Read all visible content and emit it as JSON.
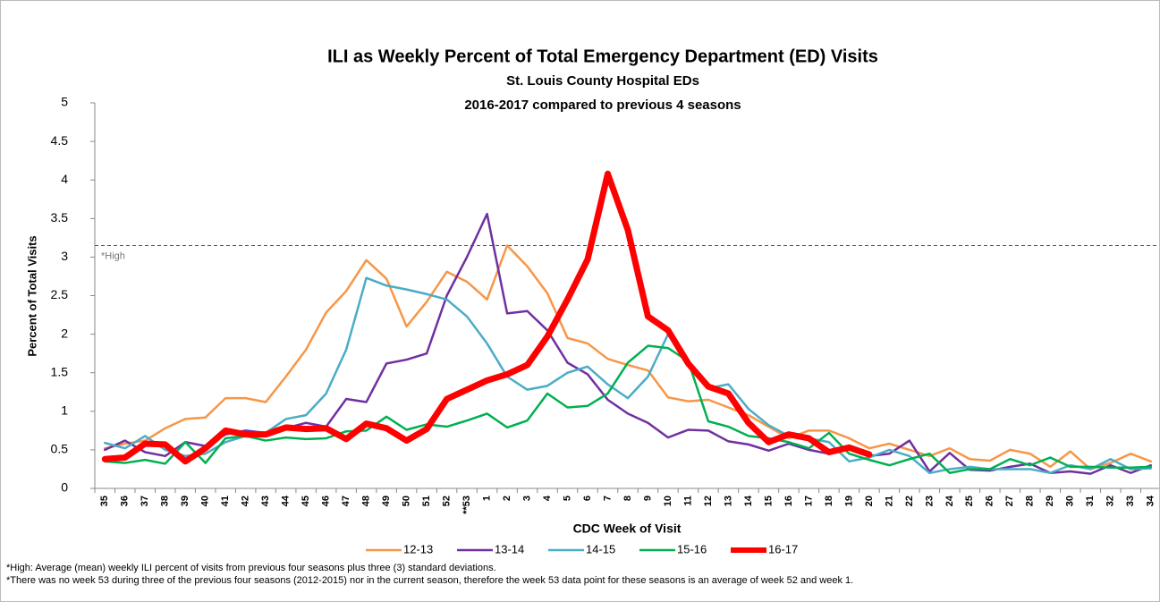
{
  "chart_data": {
    "type": "line",
    "title": "ILI as Weekly Percent of Total Emergency Department (ED) Visits",
    "subtitle": "St. Louis County Hospital EDs",
    "subtitle2": "2016-2017 compared to previous 4 seasons",
    "x_label": "CDC Week of Visit",
    "y_label": "Percent of Total Visits",
    "categories": [
      "35",
      "36",
      "37",
      "38",
      "39",
      "40",
      "41",
      "42",
      "43",
      "44",
      "45",
      "46",
      "47",
      "48",
      "49",
      "50",
      "51",
      "52",
      "**53",
      "1",
      "2",
      "3",
      "4",
      "5",
      "6",
      "7",
      "8",
      "9",
      "10",
      "11",
      "12",
      "13",
      "14",
      "15",
      "16",
      "17",
      "18",
      "19",
      "20",
      "21",
      "22",
      "23",
      "24",
      "25",
      "26",
      "27",
      "28",
      "29",
      "30",
      "31",
      "32",
      "33",
      "34"
    ],
    "ylim": [
      0,
      5
    ],
    "yticks": [
      0,
      0.5,
      1,
      1.5,
      2,
      2.5,
      3,
      3.5,
      4,
      4.5,
      5
    ],
    "grid": false,
    "threshold": {
      "value": 3.15,
      "label": "*High"
    },
    "series": [
      {
        "name": "12-13",
        "color": "#f79646",
        "highlight": false,
        "values": [
          0.52,
          0.58,
          0.62,
          0.78,
          0.9,
          0.92,
          1.17,
          1.17,
          1.12,
          1.45,
          1.8,
          2.28,
          2.56,
          2.96,
          2.72,
          2.1,
          2.42,
          2.81,
          2.68,
          2.45,
          3.15,
          2.88,
          2.53,
          1.95,
          1.88,
          1.68,
          1.6,
          1.53,
          1.18,
          1.13,
          1.15,
          1.05,
          0.95,
          0.8,
          0.65,
          0.75,
          0.75,
          0.65,
          0.52,
          0.58,
          0.5,
          0.42,
          0.52,
          0.38,
          0.36,
          0.5,
          0.45,
          0.28,
          0.48,
          0.25,
          0.33,
          0.45,
          0.35
        ]
      },
      {
        "name": "13-14",
        "color": "#7030a0",
        "highlight": false,
        "values": [
          0.5,
          0.62,
          0.47,
          0.42,
          0.6,
          0.55,
          0.7,
          0.75,
          0.72,
          0.78,
          0.85,
          0.8,
          1.16,
          1.12,
          1.62,
          1.67,
          1.75,
          2.5,
          3.0,
          3.56,
          2.27,
          2.3,
          2.05,
          1.63,
          1.48,
          1.15,
          0.97,
          0.85,
          0.66,
          0.76,
          0.75,
          0.61,
          0.57,
          0.49,
          0.58,
          0.5,
          0.45,
          0.55,
          0.42,
          0.45,
          0.62,
          0.22,
          0.46,
          0.24,
          0.23,
          0.28,
          0.32,
          0.2,
          0.22,
          0.19,
          0.3,
          0.2,
          0.3
        ]
      },
      {
        "name": "14-15",
        "color": "#4bacc6",
        "highlight": false,
        "values": [
          0.59,
          0.52,
          0.68,
          0.5,
          0.42,
          0.45,
          0.6,
          0.68,
          0.72,
          0.9,
          0.95,
          1.23,
          1.8,
          2.73,
          2.63,
          2.58,
          2.52,
          2.45,
          2.23,
          1.88,
          1.45,
          1.28,
          1.33,
          1.5,
          1.58,
          1.35,
          1.17,
          1.45,
          2.0,
          1.6,
          1.3,
          1.35,
          1.03,
          0.82,
          0.68,
          0.65,
          0.6,
          0.35,
          0.4,
          0.5,
          0.42,
          0.2,
          0.25,
          0.28,
          0.25,
          0.25,
          0.25,
          0.2,
          0.3,
          0.25,
          0.38,
          0.25,
          0.26
        ]
      },
      {
        "name": "15-16",
        "color": "#00b050",
        "highlight": false,
        "values": [
          0.35,
          0.33,
          0.37,
          0.32,
          0.6,
          0.33,
          0.65,
          0.68,
          0.62,
          0.66,
          0.64,
          0.65,
          0.74,
          0.75,
          0.93,
          0.76,
          0.83,
          0.8,
          0.88,
          0.97,
          0.79,
          0.88,
          1.23,
          1.05,
          1.07,
          1.23,
          1.63,
          1.85,
          1.82,
          1.65,
          0.87,
          0.8,
          0.68,
          0.65,
          0.6,
          0.52,
          0.72,
          0.45,
          0.37,
          0.3,
          0.38,
          0.45,
          0.2,
          0.25,
          0.25,
          0.38,
          0.3,
          0.4,
          0.28,
          0.28,
          0.27,
          0.27,
          0.28
        ]
      },
      {
        "name": "16-17",
        "color": "#ff0000",
        "highlight": true,
        "values": [
          0.38,
          0.4,
          0.58,
          0.57,
          0.35,
          0.52,
          0.75,
          0.7,
          0.7,
          0.79,
          0.77,
          0.78,
          0.64,
          0.84,
          0.78,
          0.62,
          0.77,
          1.16,
          1.28,
          1.4,
          1.48,
          1.6,
          1.97,
          2.45,
          2.97,
          4.08,
          3.35,
          2.23,
          2.05,
          1.62,
          1.32,
          1.23,
          0.85,
          0.6,
          0.7,
          0.65,
          0.47,
          0.53,
          0.44,
          null,
          null,
          null,
          null,
          null,
          null,
          null,
          null,
          null,
          null,
          null,
          null,
          null,
          null
        ]
      }
    ]
  },
  "footnotes": [
    "*High: Average (mean) weekly ILI percent of visits from previous four seasons plus three (3) standard deviations.",
    "*There was no week 53 during three of the previous four seasons (2012-2015) nor in the current season, therefore the week 53 data point for these seasons is an average of week 52 and week 1."
  ]
}
